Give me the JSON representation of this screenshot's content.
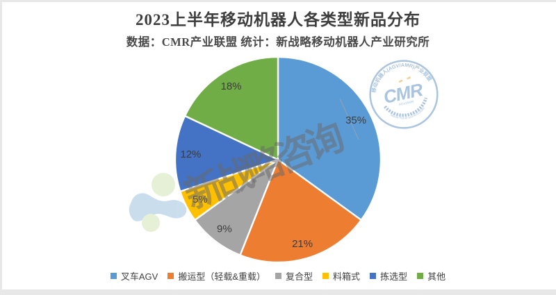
{
  "header": {
    "title": "2023上半年移动机器人各类型新品分布",
    "subtitle": "数据：CMR产业联盟 统计：新战略移动机器人产业研究所"
  },
  "chart_data": {
    "type": "pie",
    "title": "2023上半年移动机器人各类型新品分布",
    "unit": "percent",
    "start_angle_deg": 0,
    "direction": "clockwise",
    "data_labels": "percent, inside at 0.85 radius",
    "legend_position": "bottom",
    "slices": [
      {
        "label": "叉车AGV",
        "value": 35,
        "color": "#5B9BD5"
      },
      {
        "label": "搬运型（轻载&重载）",
        "value": 21,
        "color": "#ED7D31"
      },
      {
        "label": "复合型",
        "value": 9,
        "color": "#A5A5A5"
      },
      {
        "label": "料箱式",
        "value": 5,
        "color": "#FFC000"
      },
      {
        "label": "拣选型",
        "value": 12,
        "color": "#4472C4"
      },
      {
        "label": "其他",
        "value": 18,
        "color": "#70AD47"
      }
    ]
  },
  "watermarks": {
    "diagonal_text": "新战略咨询",
    "stamp": {
      "arc_text_top": "移动机器人(AGV/AMR)产业联盟",
      "center_text": "CMR",
      "center_sub_text": "AGV/AMR",
      "arc_text_bottom": "Mobile Robot and AGV/AMR"
    }
  },
  "style_colors": {
    "label_text": "#3c3c3c",
    "slice_border": "#ffffff",
    "stamp_blue": "#5d8fc2",
    "stamp_accent_orange": "#eaa63c",
    "blob_blue": "#c5daeb",
    "blob_green": "#e4efd2"
  }
}
